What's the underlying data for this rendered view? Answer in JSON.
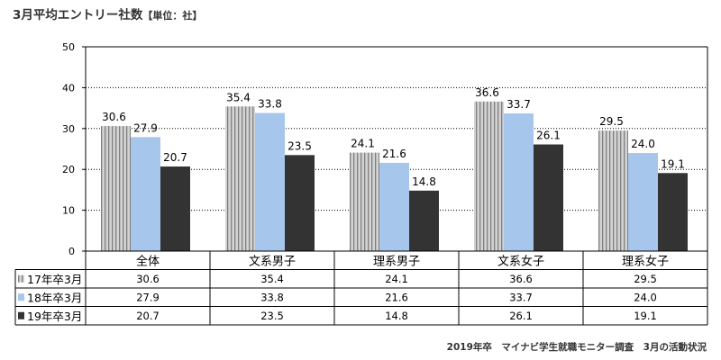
{
  "title": "3月平均エントリー社数",
  "unit_label": "【単位：社】",
  "footnote": "2019年卒　マイナビ学生就職モニター調査　3月の活動状況",
  "colors": {
    "series_2017_fill": "#d3d3d3",
    "series_2017_stripe": "#7f7f7f",
    "series_2018": "#a6c6ec",
    "series_2019": "#333333",
    "grid": "#000000"
  },
  "chart_data": {
    "type": "bar",
    "categories": [
      "全体",
      "文系男子",
      "理系男子",
      "文系女子",
      "理系女子"
    ],
    "series": [
      {
        "name": "17年卒3月",
        "values": [
          30.6,
          35.4,
          24.1,
          36.6,
          29.5
        ],
        "labels": [
          "30.6",
          "35.4",
          "24.1",
          "36.6",
          "29.5"
        ]
      },
      {
        "name": "18年卒3月",
        "values": [
          27.9,
          33.8,
          21.6,
          33.7,
          24.0
        ],
        "labels": [
          "27.9",
          "33.8",
          "21.6",
          "33.7",
          "24.0"
        ]
      },
      {
        "name": "19年卒3月",
        "values": [
          20.7,
          23.5,
          14.8,
          26.1,
          19.1
        ],
        "labels": [
          "20.7",
          "23.5",
          "14.8",
          "26.1",
          "19.1"
        ]
      }
    ],
    "ylim": [
      0,
      50
    ],
    "yticks": [
      0,
      10,
      20,
      30,
      40,
      50
    ],
    "grid": true,
    "data_table": true
  }
}
